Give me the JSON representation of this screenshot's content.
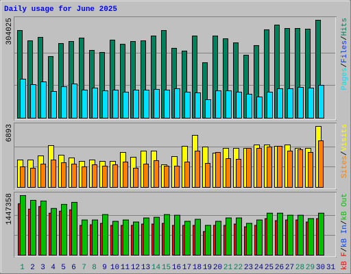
{
  "chart_data": {
    "type": "bar",
    "title": "Daily usage for June 2025",
    "categories": [
      "1",
      "2",
      "3",
      "4",
      "5",
      "6",
      "7",
      "8",
      "9",
      "10",
      "11",
      "12",
      "13",
      "14",
      "15",
      "16",
      "17",
      "18",
      "19",
      "20",
      "21",
      "22",
      "23",
      "24",
      "25",
      "26",
      "27",
      "28",
      "29",
      "30",
      "31"
    ],
    "weekend": [
      "1",
      "7",
      "8",
      "14",
      "15",
      "21",
      "22",
      "28",
      "29"
    ],
    "weekend_color": "#00805c",
    "label_color": "#000080",
    "separator": "/",
    "grid": true,
    "panels": [
      {
        "ylim": [
          0,
          304025
        ],
        "legend": [
          {
            "name": "Pages",
            "color": "#00e0ff"
          },
          {
            "name": "Files",
            "color": "#0040ff"
          },
          {
            "name": "Hits",
            "color": "#00805c"
          }
        ],
        "series": [
          {
            "name": "Hits",
            "color": "#00805c",
            "values": [
              272100,
              240200,
              250900,
              191300,
              231700,
              238100,
              248700,
              210500,
              204100,
              242400,
              229600,
              238100,
              240200,
              255100,
              272100,
              216900,
              208300,
              255100,
              172200,
              255100,
              246600,
              233900,
              195600,
              225400,
              274300,
              289100,
              278500,
              278500,
              276400,
              304025,
              null
            ]
          },
          {
            "name": "Pages",
            "color": "#00e0ff",
            "values": [
              121200,
              104200,
              112700,
              82900,
              97800,
              106300,
              87200,
              93500,
              85000,
              87200,
              80800,
              87200,
              87200,
              89300,
              87200,
              91400,
              80800,
              78700,
              57400,
              85000,
              85000,
              80800,
              74400,
              65900,
              80800,
              91400,
              91400,
              95700,
              93500,
              102000,
              null
            ]
          }
        ]
      },
      {
        "ylim": [
          0,
          6893
        ],
        "legend": [
          {
            "name": "Sites",
            "color": "#ff8000"
          },
          {
            "name": "Visits",
            "color": "#ffff00"
          }
        ],
        "series": [
          {
            "name": "Visits",
            "color": "#ffff00",
            "values": [
              3098,
              3098,
              3563,
              4724,
              3640,
              3330,
              2943,
              3098,
              2943,
              2943,
              3950,
              3408,
              4105,
              4105,
              2556,
              3485,
              4647,
              5886,
              4570,
              3873,
              4415,
              4415,
              4415,
              4802,
              4802,
              4647,
              4802,
              4415,
              4415,
              6893,
              null
            ]
          },
          {
            "name": "Sites",
            "color": "#ff8000",
            "values": [
              2324,
              2169,
              2633,
              3098,
              2788,
              2633,
              2324,
              2556,
              2401,
              2556,
              2866,
              2169,
              2633,
              3021,
              2401,
              2401,
              2866,
              4105,
              2711,
              3950,
              3253,
              3176,
              4415,
              4415,
              4570,
              4647,
              4105,
              4260,
              3950,
              5267,
              null
            ]
          }
        ]
      },
      {
        "ylim": [
          0,
          1447358
        ],
        "legend": [
          {
            "name": "kB F",
            "color": "#ff0000"
          },
          {
            "name": "kB In",
            "color": "#0040ff"
          },
          {
            "name": "kB Out",
            "color": "#00c000"
          }
        ],
        "series": [
          {
            "name": "kB F",
            "color": "#ff0000",
            "values": [
              1250000,
              1118400,
              1184200,
              1019700,
              1069100,
              1101900,
              723700,
              740100,
              773000,
              723700,
              723700,
              723700,
              756600,
              756600,
              773000,
              723700,
              723700,
              723700,
              575600,
              723700,
              723700,
              756600,
              690800,
              723700,
              888100,
              838800,
              855200,
              855200,
              805900,
              888100,
              null
            ]
          },
          {
            "name": "kB Out",
            "color": "#00c000",
            "values": [
              1447358,
              1332200,
              1315800,
              1134800,
              1233500,
              1282900,
              855200,
              855200,
              986800,
              822400,
              855200,
              805900,
              904600,
              921000,
              986800,
              970400,
              822400,
              871700,
              723700,
              822400,
              904600,
              904600,
              773000,
              855200,
              1019700,
              1019700,
              970400,
              970400,
              888100,
              1019700,
              null
            ]
          }
        ]
      }
    ]
  }
}
